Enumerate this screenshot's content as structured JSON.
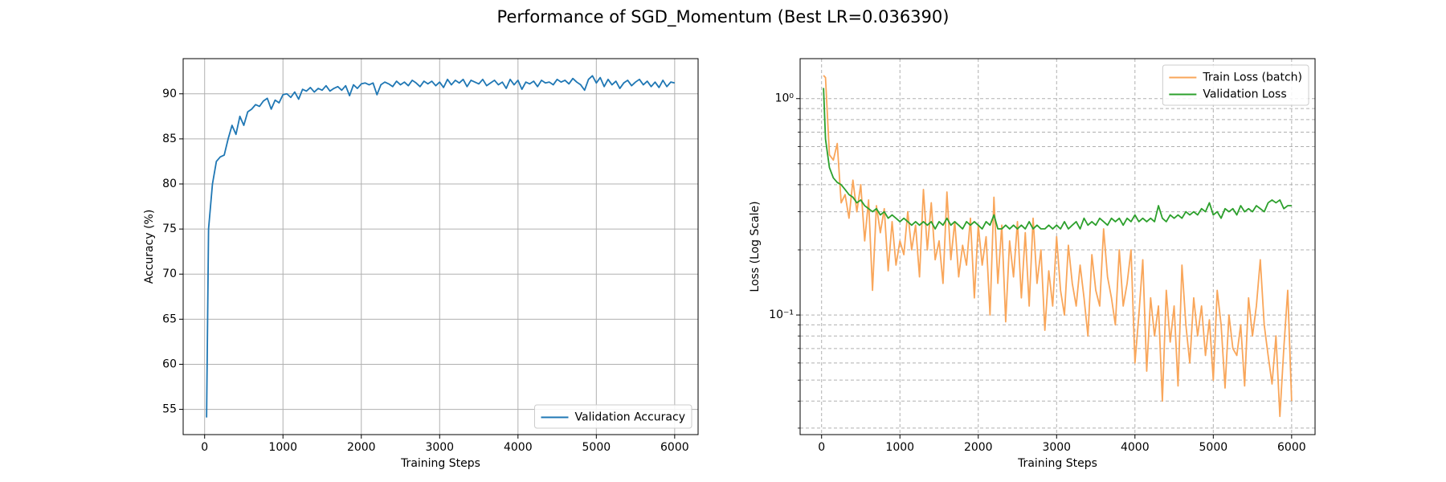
{
  "title": "Performance of SGD_Momentum (Best LR=0.036390)",
  "chart_data": [
    {
      "type": "line",
      "xlabel": "Training Steps",
      "ylabel": "Accuracy (%)",
      "x": [
        25,
        50,
        100,
        150,
        200,
        250,
        300,
        350,
        400,
        450,
        500,
        550,
        600,
        650,
        700,
        750,
        800,
        850,
        900,
        950,
        1000,
        1050,
        1100,
        1150,
        1200,
        1250,
        1300,
        1350,
        1400,
        1450,
        1500,
        1550,
        1600,
        1650,
        1700,
        1750,
        1800,
        1850,
        1900,
        1950,
        2000,
        2050,
        2100,
        2150,
        2200,
        2250,
        2300,
        2350,
        2400,
        2450,
        2500,
        2550,
        2600,
        2650,
        2700,
        2750,
        2800,
        2850,
        2900,
        2950,
        3000,
        3050,
        3100,
        3150,
        3200,
        3250,
        3300,
        3350,
        3400,
        3450,
        3500,
        3550,
        3600,
        3650,
        3700,
        3750,
        3800,
        3850,
        3900,
        3950,
        4000,
        4050,
        4100,
        4150,
        4200,
        4250,
        4300,
        4350,
        4400,
        4450,
        4500,
        4550,
        4600,
        4650,
        4700,
        4750,
        4800,
        4850,
        4900,
        4950,
        5000,
        5050,
        5100,
        5150,
        5200,
        5250,
        5300,
        5350,
        5400,
        5450,
        5500,
        5550,
        5600,
        5650,
        5700,
        5750,
        5800,
        5850,
        5900,
        5950,
        6000
      ],
      "series": [
        {
          "name": "Validation Accuracy",
          "color": "#1f77b4",
          "values": [
            54.1,
            75,
            80,
            82.5,
            83,
            83.2,
            85,
            86.5,
            85.5,
            87.5,
            86.5,
            88,
            88.3,
            88.8,
            88.6,
            89.2,
            89.5,
            88.3,
            89.3,
            89.0,
            89.9,
            90.0,
            89.6,
            90.2,
            89.4,
            90.5,
            90.3,
            90.7,
            90.2,
            90.6,
            90.4,
            90.9,
            90.3,
            90.6,
            90.8,
            90.4,
            90.9,
            89.8,
            91.0,
            90.6,
            91.1,
            91.2,
            91.0,
            91.2,
            89.9,
            91.0,
            91.3,
            91.1,
            90.8,
            91.4,
            91.0,
            91.3,
            90.9,
            91.5,
            91.2,
            90.8,
            91.4,
            91.1,
            91.4,
            90.9,
            91.3,
            90.7,
            91.6,
            91.0,
            91.5,
            91.2,
            91.6,
            90.8,
            91.5,
            91.3,
            91.1,
            91.6,
            90.9,
            91.2,
            91.5,
            91.0,
            91.3,
            90.6,
            91.6,
            91.0,
            91.5,
            90.5,
            91.3,
            91.1,
            91.4,
            90.8,
            91.5,
            91.2,
            91.3,
            91.0,
            91.6,
            91.3,
            91.5,
            91.1,
            91.7,
            91.3,
            91.0,
            90.4,
            91.6,
            92.0,
            91.2,
            91.8,
            90.8,
            91.6,
            91.0,
            91.4,
            90.6,
            91.2,
            91.5,
            90.9,
            91.3,
            91.6,
            91.0,
            91.4,
            90.8,
            91.3,
            90.7,
            91.5,
            90.8,
            91.3,
            91.2
          ]
        }
      ],
      "xlim": [
        -274,
        6299
      ],
      "xticks": [
        0,
        1000,
        2000,
        3000,
        4000,
        5000,
        6000
      ],
      "ylim": [
        52.2,
        93.9
      ],
      "yticks": [
        55,
        60,
        65,
        70,
        75,
        80,
        85,
        90
      ],
      "grid": true,
      "grid_style": "solid",
      "legend": "lower right"
    },
    {
      "type": "line",
      "xlabel": "Training Steps",
      "ylabel": "Loss (Log Scale)",
      "yscale": "log",
      "x": [
        25,
        50,
        100,
        150,
        200,
        250,
        300,
        350,
        400,
        450,
        500,
        550,
        600,
        650,
        700,
        750,
        800,
        850,
        900,
        950,
        1000,
        1050,
        1100,
        1150,
        1200,
        1250,
        1300,
        1350,
        1400,
        1450,
        1500,
        1550,
        1600,
        1650,
        1700,
        1750,
        1800,
        1850,
        1900,
        1950,
        2000,
        2050,
        2100,
        2150,
        2200,
        2250,
        2300,
        2350,
        2400,
        2450,
        2500,
        2550,
        2600,
        2650,
        2700,
        2750,
        2800,
        2850,
        2900,
        2950,
        3000,
        3050,
        3100,
        3150,
        3200,
        3250,
        3300,
        3350,
        3400,
        3450,
        3500,
        3550,
        3600,
        3650,
        3700,
        3750,
        3800,
        3850,
        3900,
        3950,
        4000,
        4050,
        4100,
        4150,
        4200,
        4250,
        4300,
        4350,
        4400,
        4450,
        4500,
        4550,
        4600,
        4650,
        4700,
        4750,
        4800,
        4850,
        4900,
        4950,
        5000,
        5050,
        5100,
        5150,
        5200,
        5250,
        5300,
        5350,
        5400,
        5450,
        5500,
        5550,
        5600,
        5650,
        5700,
        5750,
        5800,
        5850,
        5900,
        5950,
        6000
      ],
      "series": [
        {
          "name": "Train Loss (batch)",
          "color": "#f9a65a",
          "values": [
            1.28,
            1.25,
            0.55,
            0.52,
            0.62,
            0.33,
            0.36,
            0.28,
            0.42,
            0.3,
            0.4,
            0.22,
            0.34,
            0.13,
            0.32,
            0.24,
            0.31,
            0.16,
            0.27,
            0.17,
            0.22,
            0.19,
            0.3,
            0.2,
            0.26,
            0.15,
            0.38,
            0.2,
            0.33,
            0.18,
            0.22,
            0.14,
            0.37,
            0.18,
            0.27,
            0.15,
            0.21,
            0.17,
            0.28,
            0.12,
            0.26,
            0.17,
            0.23,
            0.1,
            0.35,
            0.14,
            0.26,
            0.093,
            0.22,
            0.15,
            0.27,
            0.12,
            0.24,
            0.11,
            0.28,
            0.14,
            0.2,
            0.085,
            0.16,
            0.11,
            0.23,
            0.13,
            0.1,
            0.21,
            0.14,
            0.11,
            0.17,
            0.12,
            0.08,
            0.19,
            0.13,
            0.11,
            0.25,
            0.15,
            0.12,
            0.09,
            0.2,
            0.11,
            0.14,
            0.2,
            0.06,
            0.1,
            0.18,
            0.055,
            0.12,
            0.08,
            0.11,
            0.04,
            0.13,
            0.075,
            0.11,
            0.047,
            0.17,
            0.09,
            0.06,
            0.12,
            0.08,
            0.11,
            0.065,
            0.095,
            0.05,
            0.13,
            0.09,
            0.046,
            0.1,
            0.07,
            0.065,
            0.09,
            0.047,
            0.12,
            0.08,
            0.11,
            0.18,
            0.09,
            0.065,
            0.048,
            0.08,
            0.034,
            0.07,
            0.13,
            0.04
          ]
        },
        {
          "name": "Validation Loss",
          "color": "#2ca02c",
          "values": [
            1.12,
            0.65,
            0.48,
            0.43,
            0.41,
            0.4,
            0.38,
            0.36,
            0.35,
            0.33,
            0.34,
            0.32,
            0.31,
            0.3,
            0.31,
            0.29,
            0.3,
            0.28,
            0.29,
            0.28,
            0.27,
            0.28,
            0.27,
            0.26,
            0.27,
            0.26,
            0.27,
            0.26,
            0.27,
            0.25,
            0.27,
            0.26,
            0.28,
            0.26,
            0.27,
            0.26,
            0.25,
            0.27,
            0.26,
            0.27,
            0.26,
            0.25,
            0.27,
            0.26,
            0.29,
            0.25,
            0.25,
            0.26,
            0.25,
            0.26,
            0.25,
            0.26,
            0.25,
            0.27,
            0.25,
            0.26,
            0.25,
            0.25,
            0.26,
            0.25,
            0.26,
            0.25,
            0.27,
            0.25,
            0.26,
            0.27,
            0.25,
            0.28,
            0.26,
            0.27,
            0.26,
            0.28,
            0.27,
            0.26,
            0.28,
            0.27,
            0.28,
            0.26,
            0.28,
            0.27,
            0.29,
            0.27,
            0.28,
            0.27,
            0.28,
            0.27,
            0.32,
            0.28,
            0.27,
            0.29,
            0.28,
            0.29,
            0.28,
            0.3,
            0.29,
            0.3,
            0.29,
            0.31,
            0.3,
            0.33,
            0.29,
            0.3,
            0.28,
            0.31,
            0.3,
            0.31,
            0.29,
            0.32,
            0.3,
            0.31,
            0.3,
            0.32,
            0.31,
            0.3,
            0.33,
            0.34,
            0.33,
            0.34,
            0.31,
            0.32,
            0.32
          ]
        }
      ],
      "xlim": [
        -274,
        6299
      ],
      "xticks": [
        0,
        1000,
        2000,
        3000,
        4000,
        5000,
        6000
      ],
      "ylim": [
        0.028,
        1.53
      ],
      "yticks": [
        {
          "value": 0.1,
          "label": "10⁻¹"
        },
        {
          "value": 1,
          "label": "10⁰"
        }
      ],
      "yminorticks": [
        0.03,
        0.04,
        0.05,
        0.06,
        0.07,
        0.08,
        0.09,
        0.2,
        0.3,
        0.4,
        0.5,
        0.6,
        0.7,
        0.8,
        0.9
      ],
      "grid": true,
      "grid_style": "dashed",
      "legend": "upper right"
    }
  ]
}
